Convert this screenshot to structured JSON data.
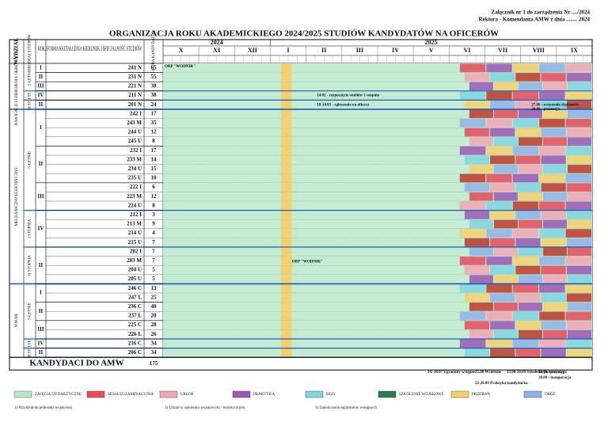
{
  "header": {
    "note1": "Załącznik nr 1 do zarządzenia Nr ..../2024",
    "note2": "Rektora - Komendanta AMW z dnia ........ 2024"
  },
  "title": "ORGANIZACJA ROKU AKADEMICKIEGO 2024/2025 STUDIÓW KANDYDATÓW NA OFICERÓW",
  "columns": {
    "faculty": "WYDZIAŁ",
    "study_type": "RODZAJ STUDIÓW",
    "program": "ROK, FORMA KSZTAŁCENIA KIERUNEK I SPECJALNOŚĆ STUDIÓW",
    "count": "LICZBA KANDYDATÓW"
  },
  "timeline": {
    "years": [
      "2024",
      "2025"
    ],
    "months": [
      "X",
      "XI",
      "XII",
      "I",
      "II",
      "III",
      "IV",
      "V",
      "VI",
      "VII",
      "VIII",
      "IX"
    ]
  },
  "faculties": [
    {
      "label": "NAWIGACJI I UZBROJENIA OKRĘTOWEGO",
      "types": [
        {
          "label": "5-LETNIE",
          "years": [
            {
              "label": "I",
              "rows": [
                {
                  "code": "241 N",
                  "count": "65"
                }
              ]
            },
            {
              "label": "II",
              "rows": [
                {
                  "code": "231 N",
                  "count": "55"
                }
              ]
            },
            {
              "label": "III",
              "rows": [
                {
                  "code": "221 N",
                  "count": "38"
                }
              ]
            }
          ]
        },
        {
          "label": "I ST.",
          "years": [
            {
              "label": "IV",
              "rows": [
                {
                  "code": "211 N",
                  "count": "38"
                }
              ]
            }
          ]
        },
        {
          "label": "II ST.",
          "years": [
            {
              "label": "II",
              "rows": [
                {
                  "code": "201 N",
                  "count": "24"
                }
              ]
            }
          ]
        }
      ]
    },
    {
      "label": "MECHANICZNO-ELEKTRYCZNY",
      "types": [
        {
          "label": "5-LETNIE",
          "years": [
            {
              "label": "I",
              "rows": [
                {
                  "code": "242 I",
                  "count": "17"
                },
                {
                  "code": "243 M",
                  "count": "35"
                },
                {
                  "code": "244 U",
                  "count": "12"
                },
                {
                  "code": "245 U",
                  "count": "8"
                }
              ]
            },
            {
              "label": "II",
              "rows": [
                {
                  "code": "232 I",
                  "count": "17"
                },
                {
                  "code": "233 M",
                  "count": "14"
                },
                {
                  "code": "234 U",
                  "count": "15"
                },
                {
                  "code": "235 U",
                  "count": "10"
                }
              ]
            },
            {
              "label": "III",
              "rows": [
                {
                  "code": "222 I",
                  "count": "6"
                },
                {
                  "code": "223 M",
                  "count": "12"
                },
                {
                  "code": "224 U",
                  "count": "8"
                }
              ]
            }
          ]
        },
        {
          "label": "I STOPNIA",
          "years": [
            {
              "label": "IV",
              "rows": [
                {
                  "code": "212 I",
                  "count": "3"
                },
                {
                  "code": "213 M",
                  "count": "9"
                },
                {
                  "code": "214 U",
                  "count": "4"
                },
                {
                  "code": "215 U",
                  "count": "7"
                }
              ]
            }
          ]
        },
        {
          "label": "II STOPNIA",
          "years": [
            {
              "label": "II",
              "rows": [
                {
                  "code": "202 I",
                  "count": "7"
                },
                {
                  "code": "203 M",
                  "count": "7"
                },
                {
                  "code": "204 U",
                  "count": "5"
                },
                {
                  "code": "205 U",
                  "count": "5"
                }
              ]
            }
          ]
        }
      ]
    },
    {
      "label": "WNOIB",
      "types": [
        {
          "label": "5-LETNIE",
          "years": [
            {
              "label": "I",
              "rows": [
                {
                  "code": "246 C",
                  "count": "13"
                },
                {
                  "code": "247 L",
                  "count": "25"
                }
              ]
            },
            {
              "label": "II",
              "rows": [
                {
                  "code": "236 C",
                  "count": "40"
                },
                {
                  "code": "237 L",
                  "count": "20"
                }
              ]
            },
            {
              "label": "III",
              "rows": [
                {
                  "code": "225 C",
                  "count": "28"
                },
                {
                  "code": "226 L",
                  "count": "26"
                }
              ]
            }
          ]
        },
        {
          "label": "I ST.",
          "years": [
            {
              "label": "IV",
              "rows": [
                {
                  "code": "216 C",
                  "count": "34"
                }
              ]
            }
          ]
        },
        {
          "label": "II ST.",
          "years": [
            {
              "label": "II",
              "rows": [
                {
                  "code": "206 C",
                  "count": "34"
                }
              ]
            }
          ]
        }
      ]
    }
  ],
  "total": {
    "label": "KANDYDACI DO AMW",
    "count": "175"
  },
  "annotations": [
    "ORP \"WODNIK\"",
    "14.02 - rozpoczęcie studiów 1-stopnia",
    "18-14.03 - zgłoszenie na oficera",
    "ORP \"WODNIK\"",
    "27.06 - wręczenie dyplomów",
    "28.06 - promocja"
  ],
  "footer": [
    "14.-18.07 Egzaminy wstępne",
    "25.08 Wcielenie",
    "23.08-20.09 Szkolenie podstawowe",
    "30.09 - przysięga",
    "30.09 - inauguracja",
    "22-26.09 Praktyka kandydacka"
  ],
  "legend": [
    {
      "label": "ZAJĘCIA DYDAKTYCZNE",
      "color": "#b9e8c9"
    },
    {
      "label": "SESJA EGZAMINACYJNA",
      "color": "#e94b5b"
    },
    {
      "label": "URLOP",
      "color": "#f3a6b4"
    },
    {
      "label": "PRAKTYKA",
      "color": "#9b59b6"
    },
    {
      "label": "REJS",
      "color": "#7fd6e0"
    },
    {
      "label": "SZKOLENIE WOJSKOWE",
      "color": "#2f7d4f"
    },
    {
      "label": "PRZERWA",
      "color": "#f6d06b"
    },
    {
      "label": "OBÓZ",
      "color": "#8fb3e8"
    }
  ],
  "notes": [
    "1) Przydział do jednostki wojskowej",
    "2) Udział w szkoleniu wojskowym - teoretycznym",
    "3) Zakończenie egzaminów wstępnych"
  ]
}
